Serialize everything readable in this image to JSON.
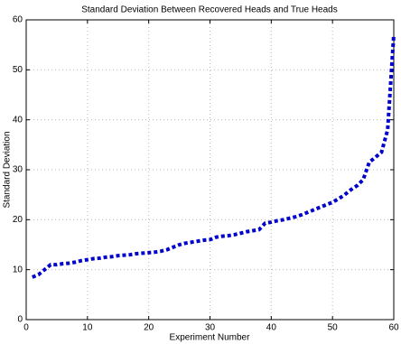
{
  "chart_data": {
    "type": "line",
    "title": "Standard Deviation Between Recovered Heads and True Heads",
    "x_label": "Experiment Number",
    "y_label": "Standard Deviation",
    "x": [
      1,
      2,
      3,
      4,
      5,
      6,
      7,
      8,
      9,
      10,
      11,
      12,
      13,
      14,
      15,
      16,
      17,
      18,
      19,
      20,
      21,
      22,
      23,
      24,
      25,
      26,
      27,
      28,
      29,
      30,
      31,
      32,
      33,
      34,
      35,
      36,
      37,
      38,
      39,
      40,
      41,
      42,
      43,
      44,
      45,
      46,
      47,
      48,
      49,
      50,
      51,
      52,
      53,
      54,
      55,
      56,
      57,
      58,
      59,
      60
    ],
    "series": [
      {
        "name": "Standard Deviation",
        "color": "#0000cc",
        "values": [
          8.5,
          9,
          10,
          11,
          11,
          11.2,
          11.3,
          11.5,
          11.8,
          12,
          12.2,
          12.3,
          12.5,
          12.6,
          12.8,
          12.9,
          13,
          13.2,
          13.3,
          13.4,
          13.5,
          13.7,
          14,
          14.5,
          15,
          15.3,
          15.5,
          15.7,
          15.9,
          16,
          16.5,
          16.7,
          16.8,
          17,
          17.3,
          17.6,
          17.8,
          18,
          19.3,
          19.5,
          19.8,
          20,
          20.3,
          20.6,
          21,
          21.5,
          22,
          22.5,
          23,
          23.5,
          24.2,
          25,
          26,
          26.8,
          28,
          31.5,
          32.5,
          33.5,
          38,
          57
        ]
      }
    ],
    "xlim": [
      0,
      60
    ],
    "ylim": [
      0,
      60
    ],
    "xticks": [
      0,
      10,
      20,
      30,
      40,
      50,
      60
    ],
    "yticks": [
      0,
      10,
      20,
      30,
      40,
      50,
      60
    ],
    "grid": true
  }
}
